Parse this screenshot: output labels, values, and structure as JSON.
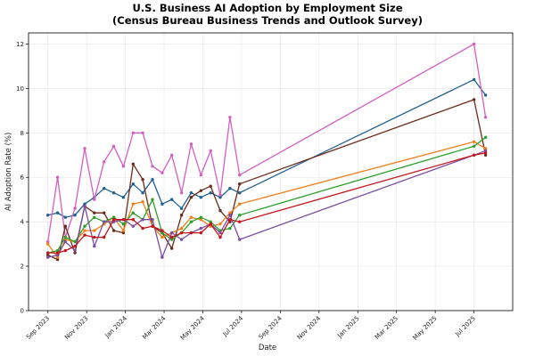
{
  "chart_data": {
    "type": "line",
    "title": "U.S. Business AI Adoption by Employment Size",
    "subtitle": "(Census Bureau Business Trends and Outlook Survey)",
    "xlabel": "Date",
    "ylabel": "AI Adoption Rate (%)",
    "ylim": [
      0,
      12.5
    ],
    "yticks": [
      0,
      2,
      4,
      6,
      8,
      10,
      12
    ],
    "xlim": [
      -1,
      24
    ],
    "xticks": [
      {
        "m": 0,
        "label": "Sep 2023"
      },
      {
        "m": 2,
        "label": "Nov 2023"
      },
      {
        "m": 4,
        "label": "Jan 2024"
      },
      {
        "m": 6,
        "label": "Mar 2024"
      },
      {
        "m": 8,
        "label": "May 2024"
      },
      {
        "m": 10,
        "label": "Jul 2024"
      },
      {
        "m": 12,
        "label": "Sep 2024"
      },
      {
        "m": 14,
        "label": "Nov 2024"
      },
      {
        "m": 16,
        "label": "Jan 2025"
      },
      {
        "m": 18,
        "label": "Mar 2025"
      },
      {
        "m": 20,
        "label": "May 2025"
      },
      {
        "m": 22,
        "label": "Jul 2025"
      }
    ],
    "x": [
      0.0,
      0.5,
      0.9,
      1.4,
      1.9,
      2.4,
      2.9,
      3.4,
      3.9,
      4.4,
      4.9,
      5.4,
      5.9,
      6.4,
      6.9,
      7.4,
      7.9,
      8.4,
      8.9,
      9.4,
      9.9,
      22.0,
      22.6
    ],
    "series": [
      {
        "name": "blue",
        "color": "#1f5f91",
        "values": [
          4.3,
          4.4,
          4.2,
          4.3,
          4.8,
          5.1,
          5.5,
          5.3,
          5.1,
          5.7,
          5.3,
          5.9,
          4.8,
          5.0,
          4.6,
          5.3,
          5.1,
          5.3,
          5.1,
          5.5,
          5.3,
          10.4,
          9.7
        ]
      },
      {
        "name": "pink",
        "color": "#d45fc2",
        "values": [
          3.1,
          6.0,
          3.3,
          4.6,
          7.3,
          5.0,
          6.7,
          7.4,
          6.5,
          8.0,
          8.0,
          6.5,
          6.2,
          7.0,
          5.3,
          7.5,
          6.1,
          7.2,
          5.2,
          8.7,
          6.1,
          12.0,
          8.7
        ]
      },
      {
        "name": "brown",
        "color": "#6b2a1a",
        "values": [
          2.5,
          2.3,
          3.8,
          2.6,
          4.7,
          4.4,
          4.4,
          3.6,
          3.5,
          6.6,
          5.9,
          3.8,
          3.5,
          2.8,
          4.3,
          5.1,
          5.4,
          5.6,
          4.5,
          4.0,
          5.7,
          9.5,
          7.0
        ]
      },
      {
        "name": "orange",
        "color": "#ef7f1a",
        "values": [
          3.0,
          2.4,
          3.2,
          3.1,
          3.6,
          3.6,
          3.9,
          4.2,
          3.6,
          4.8,
          4.9,
          3.8,
          3.3,
          3.5,
          3.7,
          4.2,
          4.1,
          3.8,
          3.9,
          4.4,
          4.8,
          7.6,
          7.3
        ]
      },
      {
        "name": "green",
        "color": "#2ca02c",
        "values": [
          2.6,
          2.7,
          3.3,
          3.1,
          3.8,
          4.2,
          4.0,
          4.2,
          3.9,
          4.4,
          4.1,
          5.0,
          3.5,
          3.2,
          3.5,
          4.0,
          4.2,
          4.0,
          3.6,
          3.7,
          4.3,
          7.4,
          7.8
        ]
      },
      {
        "name": "purple",
        "color": "#7b4ea0",
        "values": [
          2.4,
          2.5,
          3.1,
          2.7,
          4.7,
          2.9,
          4.0,
          4.0,
          4.1,
          3.8,
          4.1,
          4.1,
          2.4,
          3.5,
          3.2,
          3.5,
          3.7,
          3.9,
          3.5,
          4.3,
          3.2,
          7.0,
          7.2
        ]
      },
      {
        "name": "red",
        "color": "#c4161c",
        "values": [
          2.6,
          2.6,
          2.7,
          2.9,
          3.4,
          3.3,
          3.3,
          4.1,
          4.1,
          4.1,
          3.7,
          3.8,
          3.6,
          3.3,
          3.5,
          3.5,
          3.5,
          3.9,
          3.3,
          4.1,
          4.0,
          7.0,
          7.1
        ]
      }
    ]
  }
}
